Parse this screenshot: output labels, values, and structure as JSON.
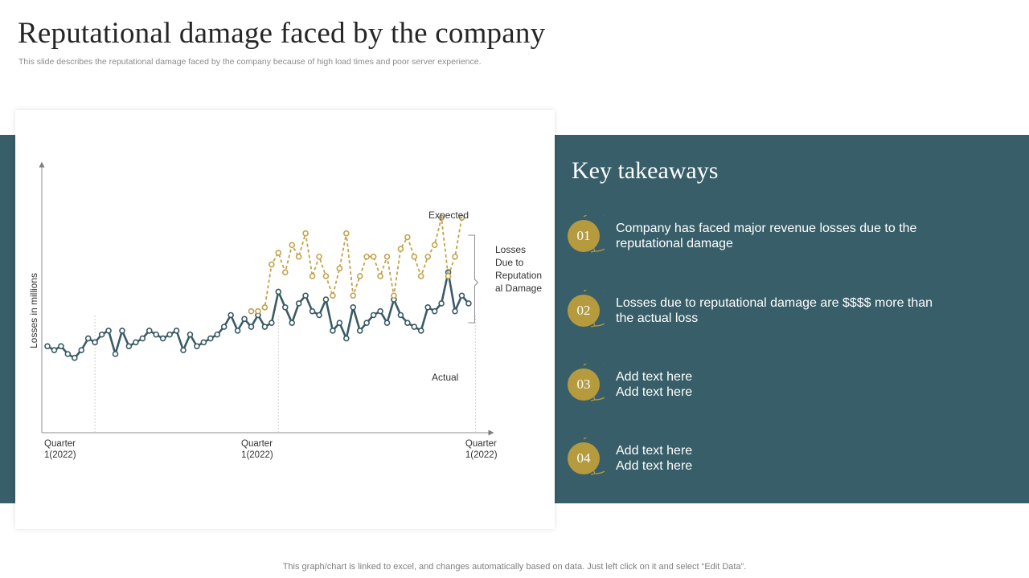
{
  "slide": {
    "title": "Reputational damage faced by the company",
    "subtitle": "This slide describes the reputational damage faced by the company because of high load times and poor server experience.",
    "footer": "This graph/chart is linked to excel,  and changes automatically based on data. Just left click on it and select “Edit Data”."
  },
  "colors": {
    "teal": "#385e69",
    "gold": "#b59b3e",
    "actual_line": "#3a5b66",
    "expected_line": "#c2a24a"
  },
  "chart_data": {
    "type": "line",
    "title": "",
    "ylabel": "Losses in millions",
    "xlabel": "",
    "x_ticks": [
      {
        "index": 0,
        "lines": [
          "Quarter",
          "1(2022)"
        ]
      },
      {
        "index": 29,
        "lines": [
          "Quarter",
          "1(2022)"
        ]
      },
      {
        "index": 62,
        "lines": [
          "Quarter",
          "1(2022)"
        ]
      }
    ],
    "ylim": [
      0,
      100
    ],
    "bracket_label": [
      "Losses",
      "Due to",
      "Reputation",
      "al Damage"
    ],
    "series": [
      {
        "name": "Actual",
        "start_index": 0,
        "values": [
          22,
          21,
          22,
          20,
          19,
          21,
          24,
          23,
          25,
          26,
          20,
          26,
          22,
          23,
          24,
          26,
          25,
          24,
          25,
          26,
          21,
          25,
          22,
          23,
          24,
          25,
          27,
          30,
          26,
          29,
          27,
          30,
          27,
          28,
          36,
          32,
          28,
          33,
          35,
          31,
          30,
          34,
          26,
          28,
          24,
          32,
          26,
          28,
          30,
          31,
          28,
          34,
          30,
          28,
          27,
          26,
          32,
          31,
          33,
          41,
          31,
          35,
          33
        ]
      },
      {
        "name": "Expected",
        "start_index": 30,
        "values": [
          31,
          31,
          32,
          43,
          46,
          41,
          48,
          45,
          51,
          40,
          45,
          40,
          35,
          42,
          51,
          35,
          40,
          45,
          45,
          40,
          45,
          35,
          47,
          50,
          45,
          40,
          45,
          48,
          55,
          40,
          45,
          55
        ]
      }
    ]
  },
  "takeaways": {
    "heading": "Key takeaways",
    "items": [
      {
        "num": "01",
        "lines": [
          "Company has faced major revenue losses due to the",
          "reputational damage"
        ]
      },
      {
        "num": "02",
        "lines": [
          "Losses due to reputational damage are $$$$ more than",
          "the actual loss"
        ]
      },
      {
        "num": "03",
        "lines": [
          "Add text here",
          "Add text here"
        ]
      },
      {
        "num": "04",
        "lines": [
          "Add text here",
          "Add text here"
        ]
      }
    ]
  }
}
